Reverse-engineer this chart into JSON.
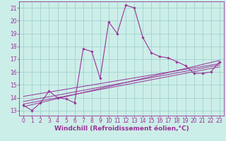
{
  "xlabel": "Windchill (Refroidissement éolien,°C)",
  "bg_color": "#cceee8",
  "line_color": "#993399",
  "xlim": [
    -0.5,
    23.5
  ],
  "ylim": [
    12.6,
    21.5
  ],
  "xticks": [
    0,
    1,
    2,
    3,
    4,
    5,
    6,
    7,
    8,
    9,
    10,
    11,
    12,
    13,
    14,
    15,
    16,
    17,
    18,
    19,
    20,
    21,
    22,
    23
  ],
  "yticks": [
    13,
    14,
    15,
    16,
    17,
    18,
    19,
    20,
    21
  ],
  "main_line": {
    "x": [
      0,
      1,
      2,
      3,
      4,
      5,
      6,
      7,
      8,
      9,
      10,
      11,
      12,
      13,
      14,
      15,
      16,
      17,
      18,
      19,
      20,
      21,
      22,
      23
    ],
    "y": [
      13.4,
      13.0,
      13.6,
      14.5,
      14.0,
      13.9,
      13.6,
      17.8,
      17.6,
      15.5,
      19.9,
      19.0,
      21.2,
      21.0,
      18.7,
      17.5,
      17.2,
      17.1,
      16.8,
      16.5,
      15.9,
      15.9,
      16.0,
      16.8
    ]
  },
  "reg_lines": [
    {
      "x": [
        0,
        23
      ],
      "y": [
        13.3,
        16.9
      ]
    },
    {
      "x": [
        0,
        23
      ],
      "y": [
        13.5,
        16.4
      ]
    },
    {
      "x": [
        0,
        23
      ],
      "y": [
        13.7,
        16.55
      ]
    },
    {
      "x": [
        0,
        23
      ],
      "y": [
        14.1,
        16.65
      ]
    }
  ],
  "grid_color": "#99cccc",
  "tick_fontsize": 5.5,
  "xlabel_fontsize": 6.5
}
